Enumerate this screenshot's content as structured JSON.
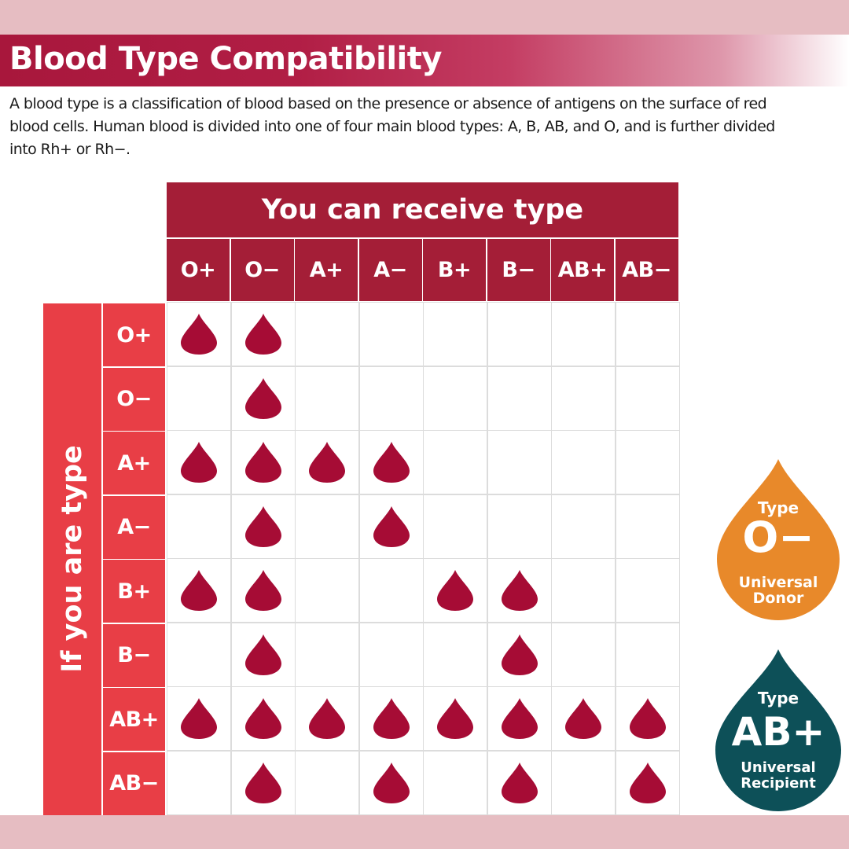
{
  "title": "Blood Type Compatibility",
  "intro": "A blood type is a classification of blood based on the presence or absence of antigens on the surface of red blood cells. Human blood is divided into one of four main blood types: A, B, AB, and O, and is further divided into Rh+ or Rh−.",
  "columns_header": "You can receive type",
  "rows_header": "If you are type",
  "columns": [
    "O+",
    "O−",
    "A+",
    "A−",
    "B+",
    "B−",
    "AB+",
    "AB−"
  ],
  "rows": [
    {
      "type": "O+",
      "can_receive": [
        1,
        1,
        0,
        0,
        0,
        0,
        0,
        0
      ]
    },
    {
      "type": "O−",
      "can_receive": [
        0,
        1,
        0,
        0,
        0,
        0,
        0,
        0
      ]
    },
    {
      "type": "A+",
      "can_receive": [
        1,
        1,
        1,
        1,
        0,
        0,
        0,
        0
      ]
    },
    {
      "type": "A−",
      "can_receive": [
        0,
        1,
        0,
        1,
        0,
        0,
        0,
        0
      ]
    },
    {
      "type": "B+",
      "can_receive": [
        1,
        1,
        0,
        0,
        1,
        1,
        0,
        0
      ]
    },
    {
      "type": "B−",
      "can_receive": [
        0,
        1,
        0,
        0,
        0,
        1,
        0,
        0
      ]
    },
    {
      "type": "AB+",
      "can_receive": [
        1,
        1,
        1,
        1,
        1,
        1,
        1,
        1
      ]
    },
    {
      "type": "AB−",
      "can_receive": [
        0,
        1,
        0,
        1,
        0,
        1,
        0,
        1
      ]
    }
  ],
  "badges": {
    "donor": {
      "label": "Type",
      "type": "O−",
      "line1": "Universal",
      "line2": "Donor",
      "color": "#e8892a"
    },
    "recipient": {
      "label": "Type",
      "type": "AB+",
      "line1": "Universal",
      "line2": "Recipient",
      "color": "#0d5058"
    }
  },
  "colors": {
    "drop": "#a60c35",
    "header": "#a41e37",
    "side": "#e83e46",
    "band": "#e6bdc2"
  }
}
